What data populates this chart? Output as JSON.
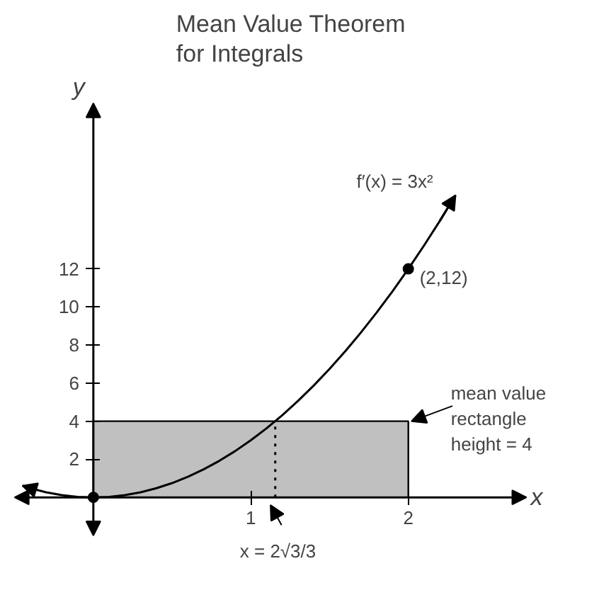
{
  "chart_data": {
    "type": "line",
    "title": "Mean Value Theorem\nfor Integrals",
    "xlabel": "x",
    "ylabel": "y",
    "xlim": [
      -0.5,
      2.75
    ],
    "ylim": [
      -2,
      20.7
    ],
    "xticks": [
      1,
      2
    ],
    "yticks": [
      2,
      4,
      6,
      8,
      10,
      12
    ],
    "grid": false,
    "series": [
      {
        "type": "area",
        "color": "#c0c0c0",
        "x": [
          0,
          2
        ],
        "values": [
          4,
          4
        ]
      },
      {
        "color": "#000000",
        "line_style": "dotted",
        "x": [
          1.155,
          1.155
        ],
        "values": [
          0,
          4
        ]
      },
      {
        "color": "#000000",
        "line_style": "solid",
        "x": [
          -0.45,
          -0.4,
          -0.3,
          -0.2,
          -0.1,
          0,
          0.1,
          0.2,
          0.3,
          0.4,
          0.5,
          0.6,
          0.7,
          0.8,
          0.9,
          1,
          1.1,
          1.2,
          1.3,
          1.4,
          1.5,
          1.6,
          1.7,
          1.8,
          1.9,
          2,
          2.1,
          2.2,
          2.3
        ],
        "values": [
          0.61,
          0.48,
          0.27,
          0.12,
          0.03,
          0,
          0.03,
          0.12,
          0.27,
          0.48,
          0.75,
          1.08,
          1.47,
          1.92,
          2.43,
          3,
          3.63,
          4.32,
          5.07,
          5.88,
          6.75,
          7.68,
          8.67,
          9.72,
          10.83,
          12,
          13.23,
          14.52,
          15.87
        ]
      },
      {
        "type": "scatter",
        "color": "#000000",
        "marker": "circle",
        "x": [
          0,
          2
        ],
        "values": [
          0,
          12
        ]
      }
    ],
    "annotations": [
      "f′(x) = 3x²",
      "(2,12)",
      {
        "text": "mean value\nrectangle\nheight = 4",
        "x": 2,
        "y": 4
      },
      "x = 2√3/3"
    ]
  }
}
